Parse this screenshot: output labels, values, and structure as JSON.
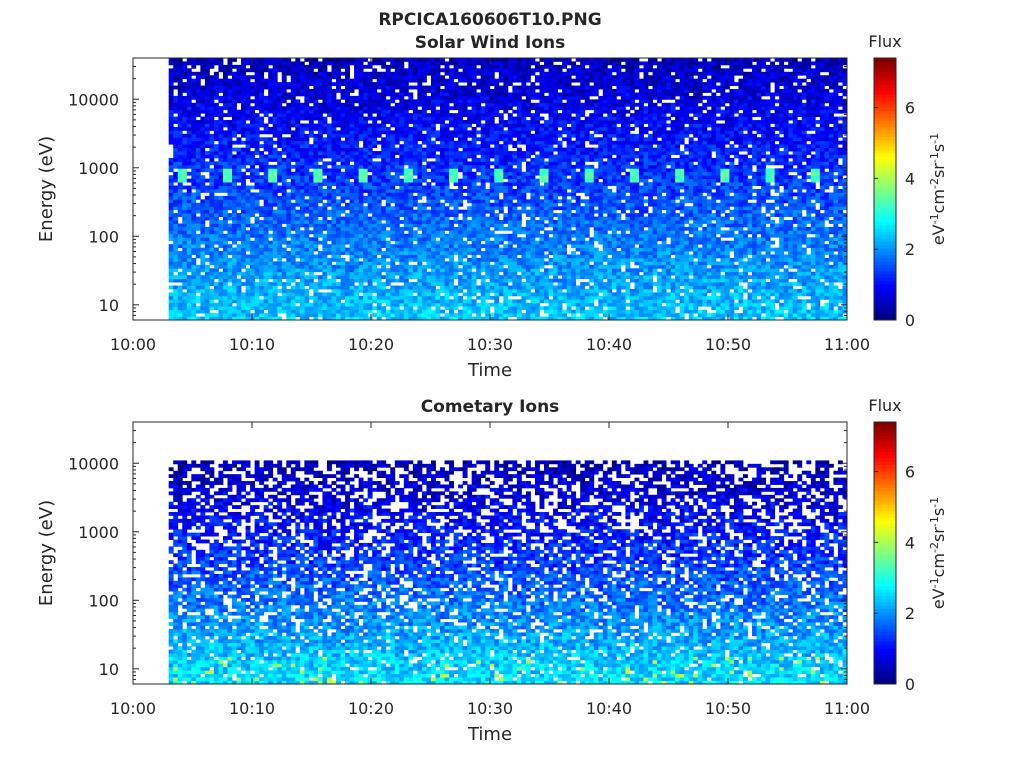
{
  "figure": {
    "title": "RPCICA160606T10.PNG"
  },
  "chart_data": [
    {
      "type": "heatmap",
      "title": "Solar Wind Ions",
      "xlabel": "Time",
      "ylabel": "Energy (eV)",
      "x_ticks": [
        "10:00",
        "10:10",
        "10:20",
        "10:30",
        "10:40",
        "10:50",
        "11:00"
      ],
      "x_range": [
        "10:00",
        "11:00"
      ],
      "data_start": "10:03",
      "y_scale": "log",
      "y_ticks": [
        10,
        100,
        1000,
        10000
      ],
      "y_tick_labels": [
        "10",
        "100",
        "1000",
        "10000"
      ],
      "y_range": [
        6,
        40000
      ],
      "energy_max": 40000,
      "peak_energy_eV": 750,
      "colorbar": {
        "title": "Flux",
        "label": "eV-1cm-2sr-1s-1",
        "ticks": [
          0,
          2,
          4,
          6
        ],
        "range": [
          0,
          7.4
        ],
        "colormap": "jet"
      }
    },
    {
      "type": "heatmap",
      "title": "Cometary Ions",
      "xlabel": "Time",
      "ylabel": "Energy (eV)",
      "x_ticks": [
        "10:00",
        "10:10",
        "10:20",
        "10:30",
        "10:40",
        "10:50",
        "11:00"
      ],
      "x_range": [
        "10:00",
        "11:00"
      ],
      "data_start": "10:03",
      "y_scale": "log",
      "y_ticks": [
        10,
        100,
        1000,
        10000
      ],
      "y_tick_labels": [
        "10",
        "100",
        "1000",
        "10000"
      ],
      "y_range": [
        6,
        40000
      ],
      "energy_max": 11000,
      "colorbar": {
        "title": "Flux",
        "label": "eV-1cm-2sr-1s-1",
        "ticks": [
          0,
          2,
          4,
          6
        ],
        "range": [
          0,
          7.4
        ],
        "colormap": "jet"
      }
    }
  ]
}
